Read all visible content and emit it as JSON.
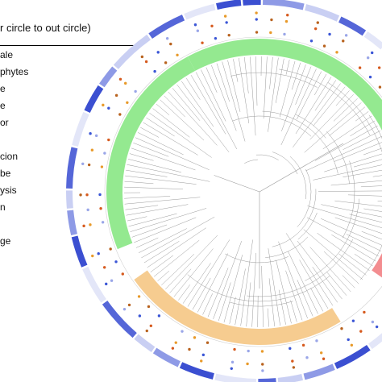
{
  "legend": {
    "title": "r circle to out circle)",
    "items": [
      "ale",
      "phytes",
      "e",
      "e",
      "or",
      "",
      "cion",
      "be",
      "ysis",
      "n",
      "",
      "ge"
    ]
  },
  "tree": {
    "clade_colors": {
      "green": "#8ee88a",
      "red": "#f2878a",
      "orange": "#f6c98a"
    },
    "clades": [
      {
        "color": "green",
        "arc_degrees": [
          -118,
          -20
        ]
      },
      {
        "color": "green",
        "arc_degrees": [
          158,
          242
        ]
      },
      {
        "color": "red",
        "arc_degrees": [
          -20,
          35
        ]
      },
      {
        "color": "orange",
        "arc_degrees": [
          58,
          145
        ]
      }
    ],
    "branch_color": "#9a9a9a",
    "outer_ring_color": "#3b4fd1",
    "dot_colors": [
      "#3b56d6",
      "#b8621e",
      "#e89a2a",
      "#9aa6e8",
      "#d65a1e"
    ]
  }
}
